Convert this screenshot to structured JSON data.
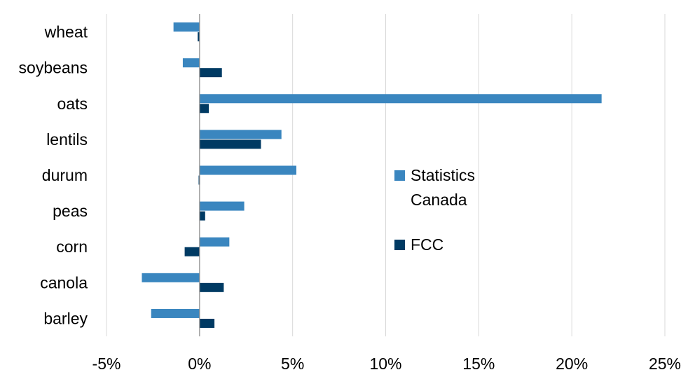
{
  "chart_data": {
    "type": "bar",
    "orientation": "horizontal",
    "categories": [
      "wheat",
      "soybeans",
      "oats",
      "lentils",
      "durum",
      "peas",
      "corn",
      "canola",
      "barley"
    ],
    "series": [
      {
        "name": "Statistics Canada",
        "legend_lines": [
          "Statistics",
          "Canada"
        ],
        "color": "#3a86bf",
        "values": [
          -1.4,
          -0.9,
          21.6,
          4.4,
          5.2,
          2.4,
          1.6,
          -3.1,
          -2.6
        ]
      },
      {
        "name": "FCC",
        "legend_lines": [
          "FCC"
        ],
        "color": "#003a63",
        "values": [
          -0.1,
          1.2,
          0.5,
          3.3,
          -0.05,
          0.3,
          -0.8,
          1.3,
          0.8
        ]
      }
    ],
    "xlim": [
      -5,
      25
    ],
    "xticks": [
      -5,
      0,
      5,
      10,
      15,
      20,
      25
    ],
    "xtick_labels": [
      "-5%",
      "0%",
      "5%",
      "10%",
      "15%",
      "20%",
      "25%"
    ],
    "grid": true,
    "legend_position": "right-middle",
    "title": "",
    "xlabel": "",
    "ylabel": ""
  }
}
